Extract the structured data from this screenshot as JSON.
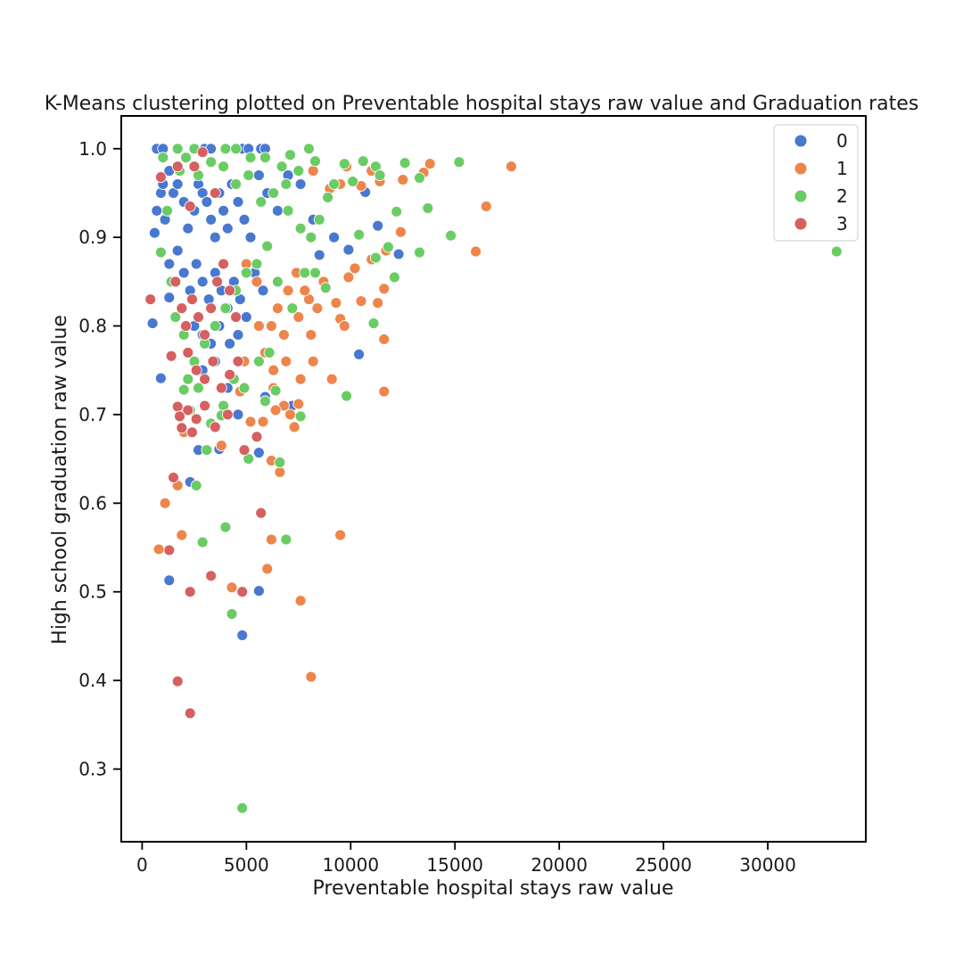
{
  "chart_data": {
    "type": "scatter",
    "title": "K-Means clustering plotted on Preventable hospital stays raw value and Graduation rates",
    "xlabel": "Preventable hospital stays raw value",
    "ylabel": "High school graduation raw value",
    "xlim": [
      -1000,
      34700
    ],
    "ylim": [
      0.218,
      1.037
    ],
    "xticks": [
      0,
      5000,
      10000,
      15000,
      20000,
      25000,
      30000
    ],
    "xtick_labels": [
      "0",
      "5000",
      "10000",
      "15000",
      "20000",
      "25000",
      "30000"
    ],
    "yticks": [
      0.3,
      0.4,
      0.5,
      0.6,
      0.7,
      0.8,
      0.9,
      1.0
    ],
    "ytick_labels": [
      "0.3",
      "0.4",
      "0.5",
      "0.6",
      "0.7",
      "0.8",
      "0.9",
      "1.0"
    ],
    "grid": false,
    "legend_position": "top-right",
    "series": [
      {
        "name": "0",
        "color": "#4878d0",
        "points": [
          [
            700,
            1.0
          ],
          [
            1000,
            1.0
          ],
          [
            3000,
            1.0
          ],
          [
            3300,
            1.0
          ],
          [
            4800,
            1.0
          ],
          [
            5100,
            1.0
          ],
          [
            5700,
            1.0
          ],
          [
            5900,
            1.0
          ],
          [
            700,
            0.93
          ],
          [
            900,
            0.95
          ],
          [
            1100,
            0.92
          ],
          [
            1300,
            0.975
          ],
          [
            1500,
            0.95
          ],
          [
            1700,
            0.96
          ],
          [
            2000,
            0.94
          ],
          [
            2200,
            0.91
          ],
          [
            2500,
            0.93
          ],
          [
            2700,
            0.96
          ],
          [
            2900,
            0.95
          ],
          [
            3100,
            0.94
          ],
          [
            3300,
            0.92
          ],
          [
            3500,
            0.9
          ],
          [
            3700,
            0.95
          ],
          [
            3900,
            0.93
          ],
          [
            4100,
            0.91
          ],
          [
            4300,
            0.96
          ],
          [
            4600,
            0.94
          ],
          [
            4900,
            0.92
          ],
          [
            5200,
            0.9
          ],
          [
            5600,
            0.97
          ],
          [
            6000,
            0.95
          ],
          [
            6500,
            0.93
          ],
          [
            7000,
            0.97
          ],
          [
            7600,
            0.96
          ],
          [
            8200,
            0.92
          ],
          [
            1300,
            0.87
          ],
          [
            1700,
            0.885
          ],
          [
            2000,
            0.86
          ],
          [
            2300,
            0.84
          ],
          [
            2600,
            0.87
          ],
          [
            2900,
            0.85
          ],
          [
            3200,
            0.83
          ],
          [
            3500,
            0.86
          ],
          [
            3800,
            0.84
          ],
          [
            4100,
            0.82
          ],
          [
            4400,
            0.85
          ],
          [
            4700,
            0.83
          ],
          [
            5000,
            0.81
          ],
          [
            5400,
            0.86
          ],
          [
            5800,
            0.84
          ],
          [
            2500,
            0.8
          ],
          [
            2900,
            0.79
          ],
          [
            3300,
            0.78
          ],
          [
            3700,
            0.8
          ],
          [
            4200,
            0.78
          ],
          [
            4600,
            0.79
          ],
          [
            2900,
            0.75
          ],
          [
            3500,
            0.76
          ],
          [
            4100,
            0.73
          ],
          [
            3800,
            0.7
          ],
          [
            4600,
            0.7
          ],
          [
            5900,
            0.72
          ],
          [
            7200,
            0.71
          ],
          [
            500,
            0.803
          ],
          [
            900,
            0.741
          ],
          [
            600,
            0.905
          ],
          [
            1000,
            0.96
          ],
          [
            1300,
            0.832
          ],
          [
            10700,
            0.951
          ],
          [
            11300,
            0.913
          ],
          [
            12300,
            0.881
          ],
          [
            10400,
            0.768
          ],
          [
            9200,
            0.9
          ],
          [
            9900,
            0.886
          ],
          [
            8500,
            0.88
          ],
          [
            2700,
            0.66
          ],
          [
            3700,
            0.661
          ],
          [
            5600,
            0.657
          ],
          [
            2300,
            0.624
          ],
          [
            1300,
            0.513
          ],
          [
            5600,
            0.501
          ],
          [
            4800,
            0.451
          ]
        ]
      },
      {
        "name": "1",
        "color": "#ee854a",
        "points": [
          [
            8200,
            0.975
          ],
          [
            9000,
            0.955
          ],
          [
            9500,
            0.96
          ],
          [
            9800,
            0.98
          ],
          [
            10500,
            0.958
          ],
          [
            11000,
            0.975
          ],
          [
            11400,
            0.963
          ],
          [
            12500,
            0.965
          ],
          [
            13500,
            0.973
          ],
          [
            13800,
            0.983
          ],
          [
            16500,
            0.935
          ],
          [
            17700,
            0.98
          ],
          [
            12400,
            0.906
          ],
          [
            11700,
            0.885
          ],
          [
            16000,
            0.884
          ],
          [
            11000,
            0.875
          ],
          [
            10200,
            0.865
          ],
          [
            9900,
            0.855
          ],
          [
            10500,
            0.828
          ],
          [
            11300,
            0.826
          ],
          [
            11600,
            0.842
          ],
          [
            8700,
            0.85
          ],
          [
            9300,
            0.826
          ],
          [
            9500,
            0.808
          ],
          [
            9700,
            0.8
          ],
          [
            8000,
            0.83
          ],
          [
            8400,
            0.82
          ],
          [
            7800,
            0.84
          ],
          [
            7400,
            0.86
          ],
          [
            7000,
            0.84
          ],
          [
            6500,
            0.82
          ],
          [
            6200,
            0.8
          ],
          [
            6800,
            0.79
          ],
          [
            7500,
            0.81
          ],
          [
            8100,
            0.79
          ],
          [
            8200,
            0.76
          ],
          [
            7600,
            0.74
          ],
          [
            6900,
            0.76
          ],
          [
            6300,
            0.75
          ],
          [
            5900,
            0.77
          ],
          [
            6300,
            0.73
          ],
          [
            6800,
            0.71
          ],
          [
            7100,
            0.7
          ],
          [
            7500,
            0.712
          ],
          [
            7300,
            0.686
          ],
          [
            6400,
            0.705
          ],
          [
            5800,
            0.692
          ],
          [
            5200,
            0.692
          ],
          [
            6200,
            0.648
          ],
          [
            6600,
            0.635
          ],
          [
            9100,
            0.74
          ],
          [
            11600,
            0.785
          ],
          [
            11600,
            0.726
          ],
          [
            4700,
            0.726
          ],
          [
            3800,
            0.665
          ],
          [
            2000,
            0.68
          ],
          [
            1700,
            0.62
          ],
          [
            1100,
            0.6
          ],
          [
            800,
            0.548
          ],
          [
            1900,
            0.564
          ],
          [
            6200,
            0.559
          ],
          [
            9500,
            0.564
          ],
          [
            6000,
            0.526
          ],
          [
            4300,
            0.505
          ],
          [
            7600,
            0.49
          ],
          [
            8100,
            0.404
          ],
          [
            5500,
            0.85
          ],
          [
            5000,
            0.87
          ],
          [
            5600,
            0.8
          ],
          [
            4900,
            0.76
          ]
        ]
      },
      {
        "name": "2",
        "color": "#6acc64",
        "points": [
          [
            1700,
            1.0
          ],
          [
            2500,
            1.0
          ],
          [
            4000,
            1.0
          ],
          [
            4500,
            1.0
          ],
          [
            5200,
            0.99
          ],
          [
            5900,
            0.99
          ],
          [
            6700,
            0.98
          ],
          [
            7100,
            0.993
          ],
          [
            8000,
            1.0
          ],
          [
            8300,
            0.986
          ],
          [
            7500,
            0.975
          ],
          [
            6900,
            0.96
          ],
          [
            6300,
            0.95
          ],
          [
            5700,
            0.94
          ],
          [
            5100,
            0.97
          ],
          [
            4500,
            0.96
          ],
          [
            3900,
            0.98
          ],
          [
            3300,
            0.985
          ],
          [
            2700,
            0.97
          ],
          [
            2100,
            0.99
          ],
          [
            1800,
            0.975
          ],
          [
            7000,
            0.93
          ],
          [
            7600,
            0.91
          ],
          [
            8100,
            0.9
          ],
          [
            8500,
            0.92
          ],
          [
            8900,
            0.945
          ],
          [
            9200,
            0.96
          ],
          [
            9700,
            0.983
          ],
          [
            10100,
            0.963
          ],
          [
            10600,
            0.986
          ],
          [
            11200,
            0.98
          ],
          [
            11400,
            0.97
          ],
          [
            12600,
            0.984
          ],
          [
            13300,
            0.967
          ],
          [
            15200,
            0.985
          ],
          [
            13700,
            0.933
          ],
          [
            12200,
            0.929
          ],
          [
            11800,
            0.889
          ],
          [
            11200,
            0.877
          ],
          [
            10400,
            0.903
          ],
          [
            12100,
            0.855
          ],
          [
            13300,
            0.883
          ],
          [
            14800,
            0.902
          ],
          [
            33300,
            0.884
          ],
          [
            11100,
            0.803
          ],
          [
            9800,
            0.721
          ],
          [
            6000,
            0.89
          ],
          [
            5500,
            0.87
          ],
          [
            5000,
            0.86
          ],
          [
            4500,
            0.84
          ],
          [
            4000,
            0.82
          ],
          [
            3500,
            0.8
          ],
          [
            3000,
            0.78
          ],
          [
            2500,
            0.76
          ],
          [
            2000,
            0.79
          ],
          [
            1600,
            0.81
          ],
          [
            1400,
            0.85
          ],
          [
            6500,
            0.85
          ],
          [
            7200,
            0.82
          ],
          [
            7800,
            0.86
          ],
          [
            8300,
            0.86
          ],
          [
            8800,
            0.843
          ],
          [
            6100,
            0.77
          ],
          [
            5600,
            0.76
          ],
          [
            4900,
            0.73
          ],
          [
            4400,
            0.74
          ],
          [
            3900,
            0.71
          ],
          [
            3300,
            0.69
          ],
          [
            2700,
            0.73
          ],
          [
            2200,
            0.74
          ],
          [
            2000,
            0.728
          ],
          [
            2300,
            0.705
          ],
          [
            3800,
            0.699
          ],
          [
            5900,
            0.715
          ],
          [
            6400,
            0.727
          ],
          [
            6600,
            0.646
          ],
          [
            7600,
            0.698
          ],
          [
            5100,
            0.65
          ],
          [
            3100,
            0.66
          ],
          [
            2600,
            0.62
          ],
          [
            4000,
            0.573
          ],
          [
            6900,
            0.559
          ],
          [
            2900,
            0.556
          ],
          [
            4300,
            0.475
          ],
          [
            4800,
            0.256
          ],
          [
            1000,
            0.99
          ],
          [
            1200,
            0.93
          ],
          [
            900,
            0.883
          ]
        ]
      },
      {
        "name": "3",
        "color": "#d65f5f",
        "points": [
          [
            400,
            0.83
          ],
          [
            900,
            0.968
          ],
          [
            1700,
            0.98
          ],
          [
            2500,
            0.98
          ],
          [
            2900,
            0.996
          ],
          [
            3500,
            0.95
          ],
          [
            2300,
            0.935
          ],
          [
            1600,
            0.85
          ],
          [
            1900,
            0.82
          ],
          [
            2100,
            0.8
          ],
          [
            2400,
            0.83
          ],
          [
            2700,
            0.81
          ],
          [
            3000,
            0.79
          ],
          [
            3300,
            0.82
          ],
          [
            3600,
            0.85
          ],
          [
            3900,
            0.87
          ],
          [
            4200,
            0.84
          ],
          [
            4500,
            0.81
          ],
          [
            2200,
            0.77
          ],
          [
            2600,
            0.75
          ],
          [
            3000,
            0.74
          ],
          [
            3400,
            0.76
          ],
          [
            3800,
            0.73
          ],
          [
            4200,
            0.745
          ],
          [
            4600,
            0.76
          ],
          [
            2200,
            0.705
          ],
          [
            2600,
            0.695
          ],
          [
            3000,
            0.71
          ],
          [
            1900,
            0.685
          ],
          [
            1700,
            0.709
          ],
          [
            1800,
            0.698
          ],
          [
            2400,
            0.68
          ],
          [
            3500,
            0.686
          ],
          [
            4100,
            0.7
          ],
          [
            4900,
            0.66
          ],
          [
            5500,
            0.675
          ],
          [
            1400,
            0.766
          ],
          [
            1500,
            0.629
          ],
          [
            1300,
            0.547
          ],
          [
            5700,
            0.589
          ],
          [
            3300,
            0.518
          ],
          [
            2300,
            0.5
          ],
          [
            4800,
            0.5
          ],
          [
            1700,
            0.399
          ],
          [
            2300,
            0.363
          ]
        ]
      }
    ]
  }
}
